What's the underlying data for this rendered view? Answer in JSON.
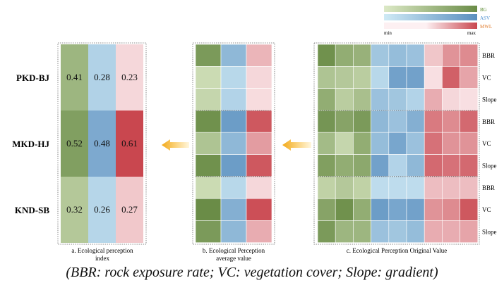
{
  "chart_data": {
    "type": "heatmap",
    "legend": {
      "min_label": "min",
      "max_label": "max",
      "series": [
        {
          "name": "BG",
          "min_color": "#dce9c6",
          "max_color": "#6a8c47",
          "text_color": "#5a8a30"
        },
        {
          "name": "ASV",
          "min_color": "#cfeaf5",
          "max_color": "#5b8fbf",
          "text_color": "#4b8fd0"
        },
        {
          "name": "MWL",
          "min_color": "#fdf0f2",
          "max_color": "#c9474f",
          "text_color": "#e07a2a"
        }
      ]
    },
    "row_groups": [
      "PKD-BJ",
      "MKD-HJ",
      "KND-SB"
    ],
    "indicators": [
      "BBR",
      "VC",
      "Slope",
      "BBR",
      "VC",
      "Slope",
      "BBR",
      "VC",
      "Slope"
    ],
    "panels": [
      {
        "caption_lines": [
          "a. Ecological perception",
          "index"
        ],
        "values": [
          [
            0.41,
            0.28,
            0.23
          ],
          [
            0.52,
            0.48,
            0.61
          ],
          [
            0.32,
            0.26,
            0.27
          ]
        ],
        "labels": [
          [
            "0.41",
            "0.28",
            "0.23"
          ],
          [
            "0.52",
            "0.48",
            "0.61"
          ],
          [
            "0.32",
            "0.26",
            "0.27"
          ]
        ]
      },
      {
        "caption_lines": [
          "b. Ecological Perception",
          "average value"
        ],
        "levels": [
          [
            0.85,
            0.55,
            0.35
          ],
          [
            0.15,
            0.2,
            0.15
          ],
          [
            0.2,
            0.25,
            0.12
          ],
          [
            0.95,
            0.85,
            0.9
          ],
          [
            0.4,
            0.55,
            0.5
          ],
          [
            0.95,
            0.85,
            0.9
          ],
          [
            0.15,
            0.2,
            0.15
          ],
          [
            1.0,
            0.65,
            0.95
          ],
          [
            0.85,
            0.55,
            0.4
          ]
        ]
      },
      {
        "caption_lines": [
          "c. Ecological Perception Original Value"
        ],
        "levels": [
          [
            0.95,
            0.65,
            0.6,
            0.4,
            0.5,
            0.45,
            0.25,
            0.55,
            0.6
          ],
          [
            0.4,
            0.35,
            0.3,
            0.2,
            0.8,
            0.8,
            0.1,
            0.85,
            0.45
          ],
          [
            0.65,
            0.3,
            0.45,
            0.45,
            0.4,
            0.25,
            0.4,
            0.15,
            0.1
          ],
          [
            0.9,
            0.75,
            0.85,
            0.55,
            0.45,
            0.65,
            0.7,
            0.6,
            0.8
          ],
          [
            0.5,
            0.2,
            0.65,
            0.5,
            0.75,
            0.45,
            0.75,
            0.55,
            0.55
          ],
          [
            0.8,
            0.65,
            0.7,
            0.8,
            0.25,
            0.55,
            0.8,
            0.75,
            0.8
          ],
          [
            0.25,
            0.35,
            0.25,
            0.15,
            0.15,
            0.15,
            0.3,
            0.3,
            0.3
          ],
          [
            0.75,
            0.95,
            0.65,
            0.85,
            0.75,
            0.8,
            0.55,
            0.6,
            0.9
          ],
          [
            0.85,
            0.55,
            0.55,
            0.45,
            0.4,
            0.5,
            0.4,
            0.4,
            0.45
          ]
        ]
      }
    ]
  },
  "footnote": "(BBR: rock exposure rate; VC: vegetation cover; Slope: gradient)"
}
